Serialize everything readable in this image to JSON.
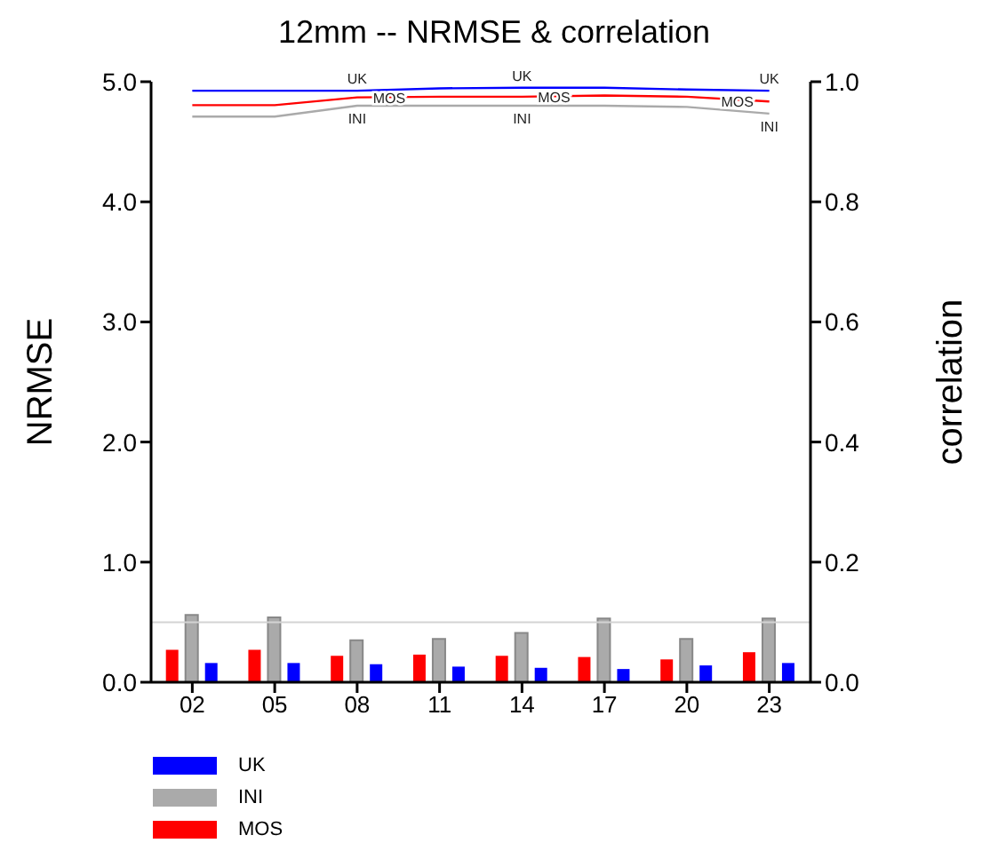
{
  "chart_data": {
    "type": "bar",
    "title": "12mm -- NRMSE & correlation",
    "ylabel": "NRMSE",
    "y2label": "correlation",
    "categories": [
      "02",
      "05",
      "08",
      "11",
      "14",
      "17",
      "20",
      "23"
    ],
    "series": [
      {
        "name": "UK",
        "color": "#0000ff",
        "values": [
          0.16,
          0.16,
          0.15,
          0.13,
          0.12,
          0.11,
          0.14,
          0.16
        ]
      },
      {
        "name": "INI",
        "color": "#aaaaaa",
        "values": [
          0.56,
          0.54,
          0.35,
          0.36,
          0.41,
          0.53,
          0.36,
          0.53
        ]
      },
      {
        "name": "MOS",
        "color": "#ff0000",
        "values": [
          0.27,
          0.27,
          0.22,
          0.23,
          0.22,
          0.21,
          0.19,
          0.25
        ]
      },
      {
        "name": "UK",
        "type": "line",
        "axis": "y2",
        "color": "#0000ff",
        "values": [
          0.985,
          0.985,
          0.985,
          0.989,
          0.99,
          0.99,
          0.987,
          0.985
        ]
      },
      {
        "name": "INI",
        "type": "line",
        "axis": "y2",
        "color": "#aaaaaa",
        "values": [
          0.942,
          0.942,
          0.96,
          0.96,
          0.96,
          0.96,
          0.958,
          0.947
        ]
      },
      {
        "name": "MOS",
        "type": "line",
        "axis": "y2",
        "color": "#ff0000",
        "values": [
          0.961,
          0.961,
          0.974,
          0.975,
          0.975,
          0.977,
          0.975,
          0.967
        ]
      }
    ],
    "ylim": [
      0,
      5
    ],
    "yticks": [
      {
        "value": 0,
        "label": "0.0"
      },
      {
        "value": 1,
        "label": "1.0"
      },
      {
        "value": 2,
        "label": "2.0"
      },
      {
        "value": 3,
        "label": "3.0"
      },
      {
        "value": 4,
        "label": "4.0"
      },
      {
        "value": 5,
        "label": "5.0"
      }
    ],
    "y2lim": [
      0,
      1
    ],
    "y2ticks": [
      {
        "value": 0,
        "label": "0.0"
      },
      0.2,
      0.4,
      0.6,
      0.8,
      {
        "value": 1,
        "label": "1.0"
      }
    ],
    "ref_lines": [
      {
        "axis": "y",
        "value": 0.5,
        "color": "#d3d3d3"
      }
    ],
    "grid": false,
    "legend": "bottom left"
  }
}
